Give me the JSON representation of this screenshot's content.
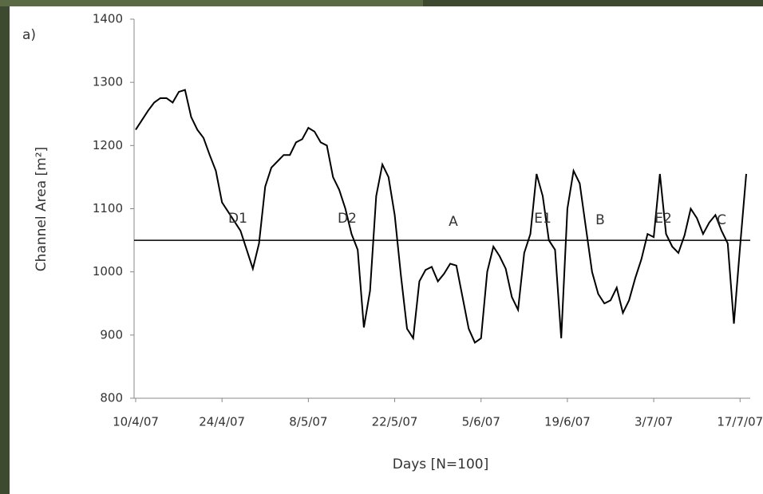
{
  "chart_data": {
    "type": "line",
    "panel_label": "a)",
    "x_label": "Days [N=100]",
    "y_label": "Channel Area [m²]",
    "categories": [
      "10/4/07",
      null,
      null,
      null,
      null,
      null,
      null,
      null,
      null,
      null,
      null,
      null,
      null,
      null,
      "24/4/07",
      null,
      null,
      null,
      null,
      null,
      null,
      null,
      null,
      null,
      null,
      null,
      null,
      null,
      "8/5/07",
      null,
      null,
      null,
      null,
      null,
      null,
      null,
      null,
      null,
      null,
      null,
      null,
      null,
      "22/5/07",
      null,
      null,
      null,
      null,
      null,
      null,
      null,
      null,
      null,
      null,
      null,
      null,
      null,
      "5/6/07",
      null,
      null,
      null,
      null,
      null,
      null,
      null,
      null,
      null,
      null,
      null,
      null,
      null,
      "19/6/07",
      null,
      null,
      null,
      null,
      null,
      null,
      null,
      null,
      null,
      null,
      null,
      null,
      null,
      "3/7/07",
      null,
      null,
      null,
      null,
      null,
      null,
      null,
      null,
      null,
      null,
      null,
      null,
      null,
      "17/7/07",
      null
    ],
    "values": [
      1225,
      1240,
      1255,
      1268,
      1275,
      1275,
      1268,
      1285,
      1288,
      1245,
      1225,
      1212,
      1185,
      1160,
      1110,
      1095,
      1080,
      1065,
      1035,
      1005,
      1045,
      1135,
      1165,
      1175,
      1185,
      1185,
      1205,
      1210,
      1228,
      1222,
      1205,
      1200,
      1150,
      1130,
      1100,
      1060,
      1035,
      912,
      970,
      1120,
      1170,
      1150,
      1090,
      995,
      910,
      895,
      985,
      1003,
      1008,
      985,
      997,
      1013,
      1010,
      960,
      910,
      888,
      895,
      1000,
      1040,
      1025,
      1005,
      960,
      940,
      1030,
      1060,
      1155,
      1120,
      1050,
      1035,
      895,
      1100,
      1160,
      1140,
      1070,
      1000,
      965,
      950,
      955,
      975,
      935,
      955,
      990,
      1020,
      1060,
      1055,
      1155,
      1060,
      1040,
      1030,
      1058,
      1100,
      1085,
      1060,
      1078,
      1090,
      1065,
      1045,
      918,
      1040,
      1155
    ],
    "color": "#000000",
    "reference_line": 1050,
    "annotations": [
      "D1",
      "D2",
      "A",
      "E1",
      "B",
      "E2",
      "C"
    ],
    "ylim": [
      800,
      1400
    ],
    "yticks": [
      800,
      900,
      1000,
      1100,
      1200,
      1300,
      1400
    ]
  }
}
